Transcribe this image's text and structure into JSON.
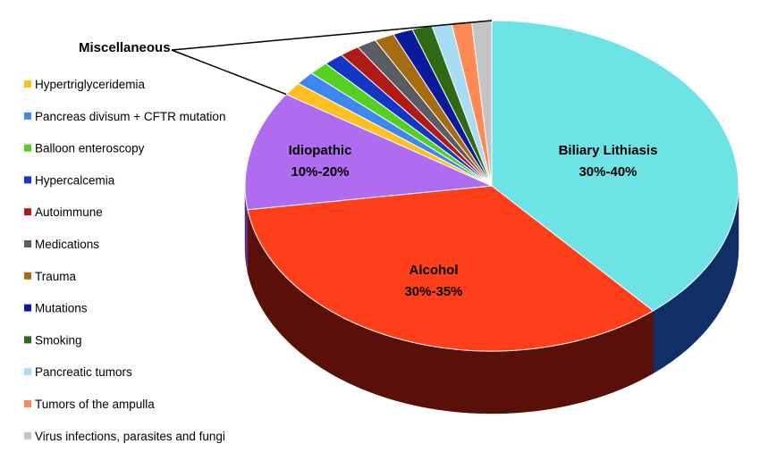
{
  "chart_data": {
    "type": "pie",
    "title": "",
    "slices": [
      {
        "label": "Biliary Lithiasis",
        "range": "30%-40%",
        "value": 38.5,
        "color": "#6EE3E6",
        "side_color": "#0F2F66"
      },
      {
        "label": "Alcohol",
        "range": "30%-35%",
        "value": 33.9,
        "color": "#FF3F1A",
        "side_color": "#5A1008"
      },
      {
        "label": "Idiopathic",
        "range": "10%-20%",
        "value": 11.6,
        "color": "#B06CF0",
        "side_color": "#5A2F80"
      },
      {
        "label": "Hypertriglyceridemia",
        "value": 1.3,
        "color": "#FFC020",
        "side_color": "#9A7410"
      },
      {
        "label": "Pancreas divisum + CFTR mutation",
        "value": 1.3,
        "color": "#3F86F0",
        "side_color": "#1F4480"
      },
      {
        "label": "Balloon enteroscopy",
        "value": 1.3,
        "color": "#55D020",
        "side_color": "#2A6810"
      },
      {
        "label": "Hypercalcemia",
        "value": 1.3,
        "color": "#1436C8",
        "side_color": "#0A1B64"
      },
      {
        "label": "Autoimmune",
        "value": 1.3,
        "color": "#B01A14",
        "side_color": "#580D0A"
      },
      {
        "label": "Medications",
        "value": 1.3,
        "color": "#5A5C64",
        "side_color": "#2D2E32"
      },
      {
        "label": "Trauma",
        "value": 1.3,
        "color": "#A86C10",
        "side_color": "#543608"
      },
      {
        "label": "Mutations",
        "value": 1.3,
        "color": "#0A1A9A",
        "side_color": "#050D4D"
      },
      {
        "label": "Smoking",
        "value": 1.3,
        "color": "#2E6A14",
        "side_color": "#17350A"
      },
      {
        "label": "Pancreatic tumors",
        "value": 1.3,
        "color": "#A8DCF4",
        "side_color": "#546E7A"
      },
      {
        "label": "Tumors of the ampulla",
        "value": 1.3,
        "color": "#FF8A55",
        "side_color": "#80452A"
      },
      {
        "label": "Virus infections, parasites and fungi",
        "value": 1.3,
        "color": "#C4C4C4",
        "side_color": "#626262"
      }
    ],
    "callout_label": "Miscellaneous",
    "legend_position": "left",
    "legend": [
      "Hypertriglyceridemia",
      "Pancreas divisum + CFTR mutation",
      "Balloon enteroscopy",
      "Hypercalcemia",
      "Autoimmune",
      "Medications",
      "Trauma",
      "Mutations",
      "Smoking",
      "Pancreatic tumors",
      "Tumors of the ampulla",
      "Virus infections, parasites and fungi"
    ]
  }
}
